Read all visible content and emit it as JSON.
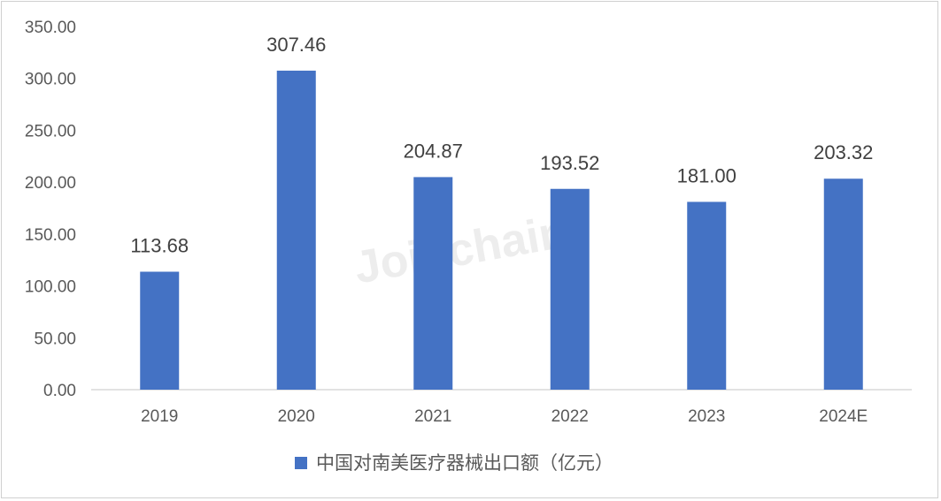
{
  "watermark": "Joinchain",
  "chart_data": {
    "type": "bar",
    "categories": [
      "2019",
      "2020",
      "2021",
      "2022",
      "2023",
      "2024E"
    ],
    "series": [
      {
        "name": "中国对南美医疗器械出口额（亿元）",
        "values": [
          113.68,
          307.46,
          204.87,
          193.52,
          181.0,
          203.32
        ],
        "labels": [
          "113.68",
          "307.46",
          "204.87",
          "193.52",
          "181.00",
          "203.32"
        ],
        "color": "#4472C4"
      }
    ],
    "ylim": [
      0,
      350
    ],
    "yticks": [
      "0.00",
      "50.00",
      "100.00",
      "150.00",
      "200.00",
      "250.00",
      "300.00",
      "350.00"
    ],
    "grid": false,
    "legend": "bottom"
  }
}
